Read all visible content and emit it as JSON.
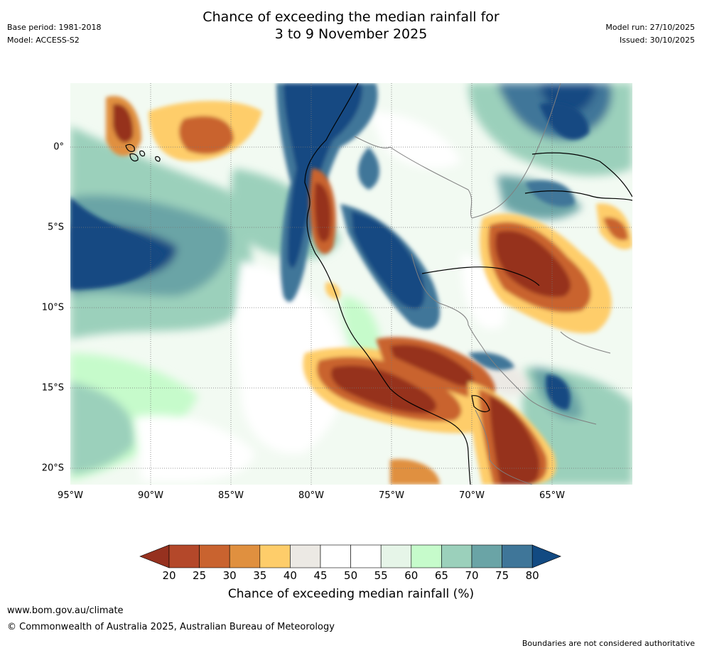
{
  "title": {
    "line1": "Chance of exceeding the median rainfall for",
    "line2": "3 to 9 November 2025"
  },
  "meta": {
    "base_period": "Base period: 1981-2018",
    "model": "Model: ACCESS-S2",
    "model_run": "Model run: 27/10/2025",
    "issued": "Issued: 30/10/2025"
  },
  "axes": {
    "lon_labels": [
      "95°W",
      "90°W",
      "85°W",
      "80°W",
      "75°W",
      "70°W",
      "65°W"
    ],
    "lat_labels": [
      "0°",
      "5°S",
      "10°S",
      "15°S",
      "20°S"
    ]
  },
  "colorbar": {
    "ticks": [
      "20",
      "25",
      "30",
      "35",
      "40",
      "45",
      "50",
      "55",
      "60",
      "65",
      "70",
      "75",
      "80"
    ],
    "label": "Chance of exceeding median rainfall (%)",
    "colors": [
      "#96311f",
      "#b4482a",
      "#c9632f",
      "#e0903f",
      "#fecd6a",
      "#ece9e4",
      "#ffffff",
      "#ffffff",
      "#e6f5e8",
      "#c6fbcb",
      "#9bd0bb",
      "#6aa4a6",
      "#3f7699",
      "#124a82"
    ]
  },
  "footer": {
    "url": "www.bom.gov.au/climate",
    "copyright": "© Commonwealth of Australia 2025, Australian Bureau of Meteorology",
    "disclaimer": "Boundaries are not considered authoritative"
  }
}
